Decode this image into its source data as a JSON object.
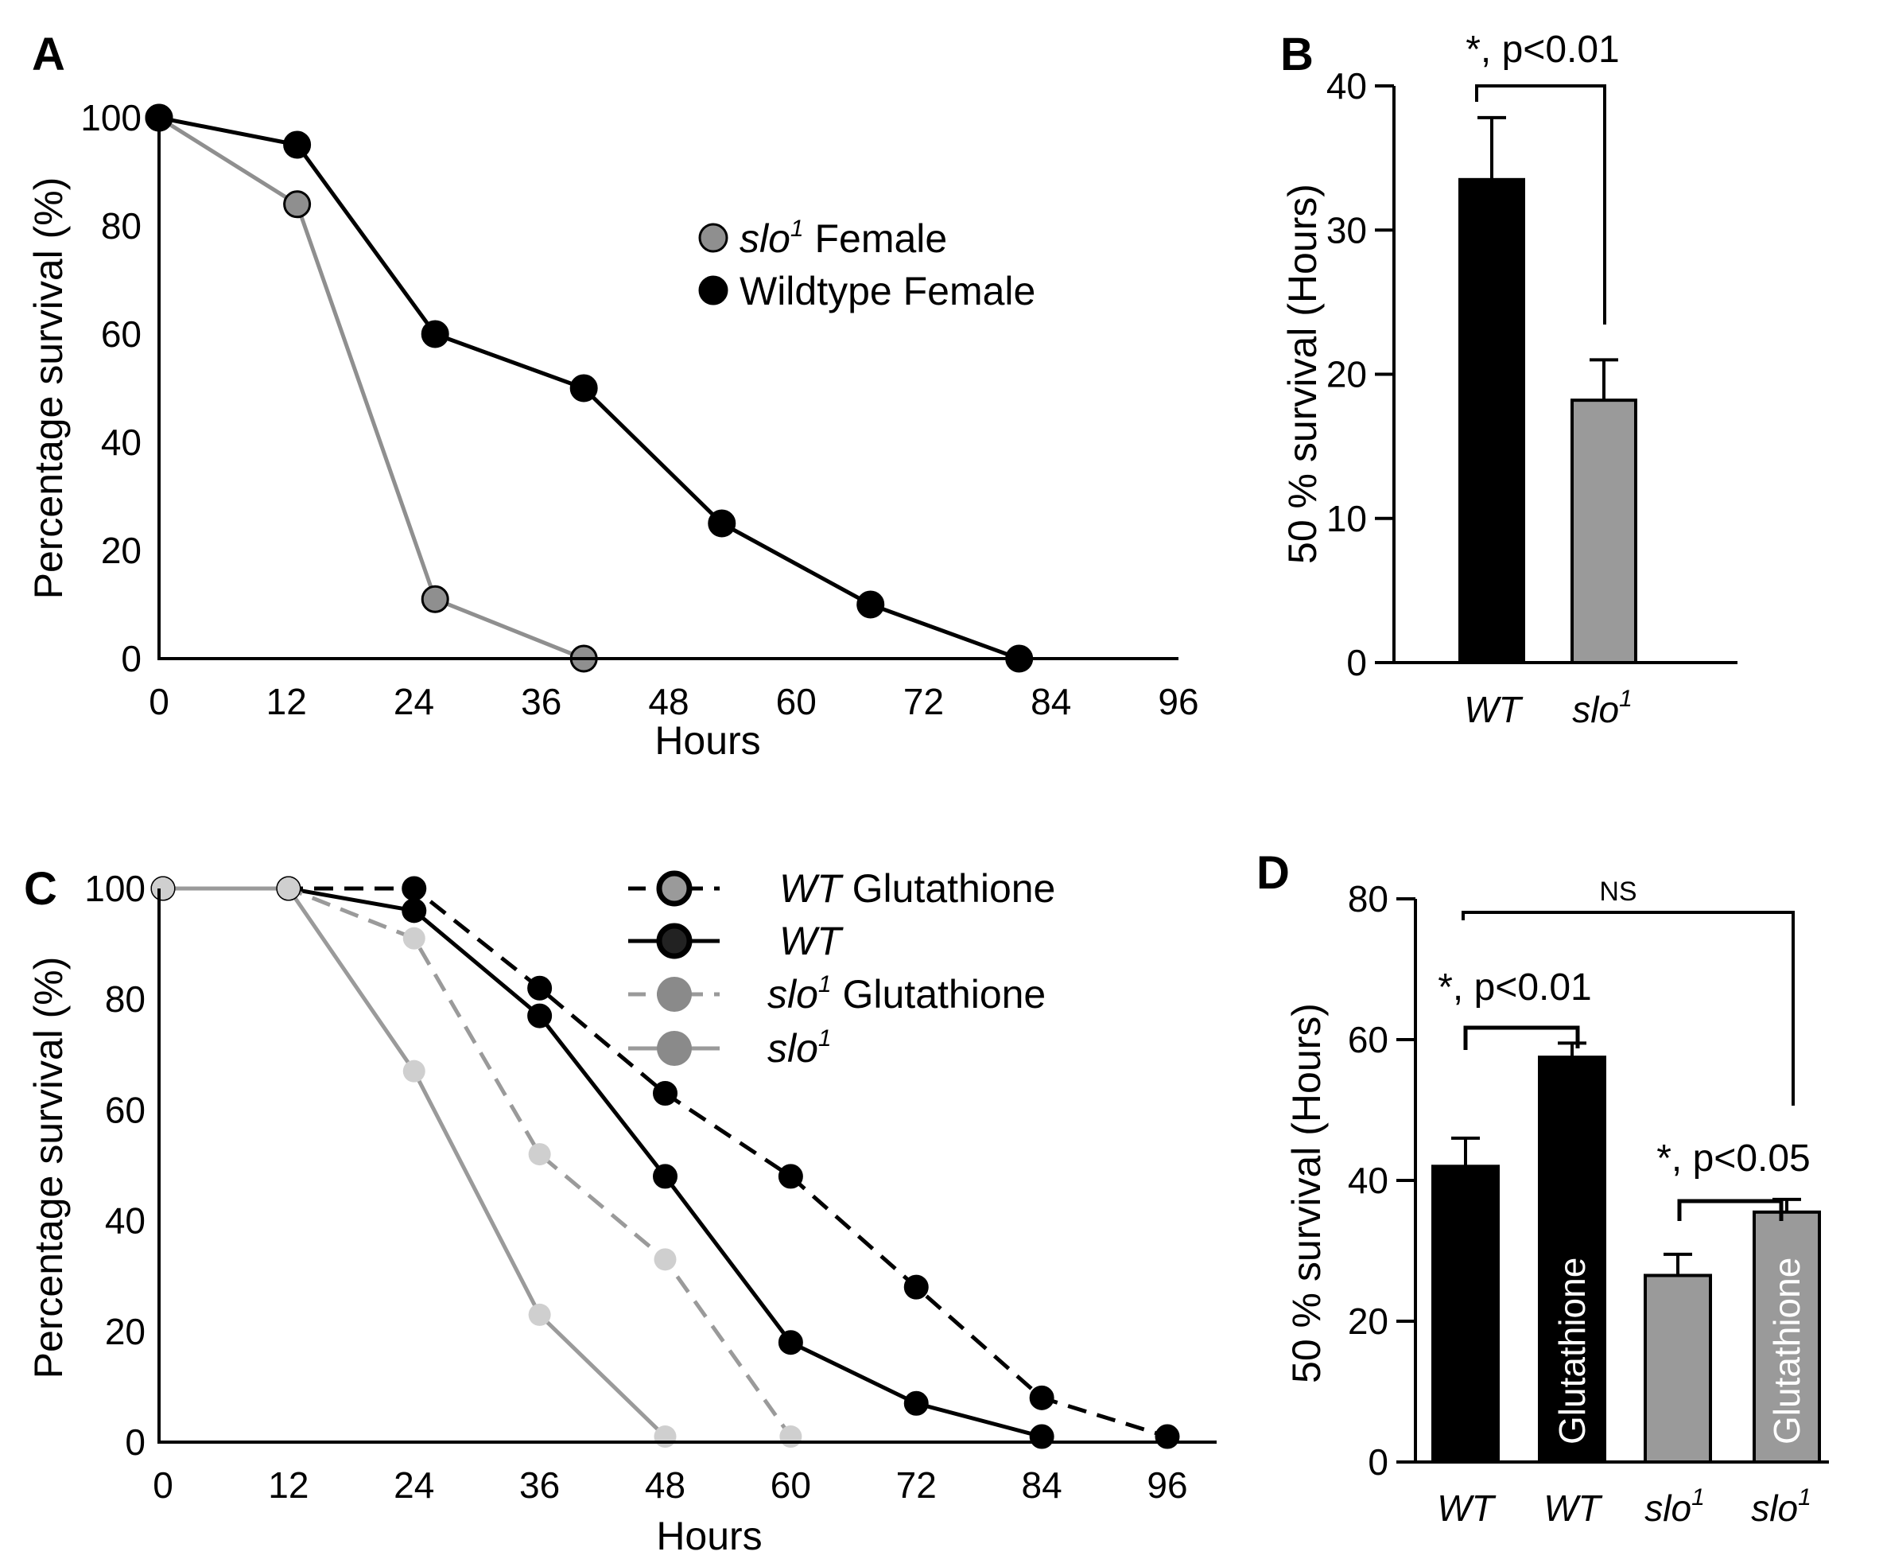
{
  "colors": {
    "black": "#000000",
    "gray": "#8f8f8f",
    "light_gray": "#cfcfcf",
    "bar_gray": "#9a9a9a"
  },
  "panels": {
    "A": {
      "letter": "A"
    },
    "B": {
      "letter": "B"
    },
    "C": {
      "letter": "C"
    },
    "D": {
      "letter": "D"
    }
  },
  "chart_data": [
    {
      "panel": "A",
      "type": "line",
      "xlabel": "Hours",
      "ylabel": "Percentage survival (%)",
      "xlim": [
        0,
        96
      ],
      "ylim": [
        0,
        100
      ],
      "xticks": [
        0,
        12,
        24,
        36,
        48,
        60,
        72,
        84,
        96
      ],
      "yticks": [
        0,
        20,
        40,
        60,
        80,
        100
      ],
      "legend_position": "top-right",
      "series": [
        {
          "name_italic": "slo",
          "name_sup": "1",
          "name_rest": " Female",
          "color": "#8f8f8f",
          "marker_fill": "#8f8f8f",
          "dashed": false,
          "x": [
            0,
            13,
            26,
            40
          ],
          "y": [
            100,
            84,
            11,
            0
          ]
        },
        {
          "name": "Wildtype Female",
          "color": "#000000",
          "marker_fill": "#000000",
          "dashed": false,
          "x": [
            0,
            13,
            26,
            40,
            53,
            67,
            81
          ],
          "y": [
            100,
            95,
            60,
            50,
            25,
            10,
            0
          ]
        }
      ]
    },
    {
      "panel": "B",
      "type": "bar",
      "ylabel": "50 % survival (Hours)",
      "ylim": [
        0,
        40
      ],
      "yticks": [
        0,
        10,
        20,
        30,
        40
      ],
      "categories": [
        {
          "italic": "WT",
          "sup": ""
        },
        {
          "italic": "slo",
          "sup": "1"
        }
      ],
      "values": [
        33.5,
        18.2
      ],
      "errors": [
        4.3,
        2.8
      ],
      "bar_colors": [
        "#000000",
        "#9a9a9a"
      ],
      "significance": [
        {
          "between": [
            0,
            1
          ],
          "label": "*, p<0.01"
        }
      ]
    },
    {
      "panel": "C",
      "type": "line",
      "xlabel": "Hours",
      "ylabel": "Percentage survival (%)",
      "xlim": [
        0,
        96
      ],
      "ylim": [
        0,
        100
      ],
      "xticks": [
        0,
        12,
        24,
        36,
        48,
        60,
        72,
        84,
        96
      ],
      "yticks": [
        0,
        20,
        40,
        60,
        80,
        100
      ],
      "legend_position": "top-right",
      "series": [
        {
          "name_italic": "WT",
          "name_sup": "",
          "name_rest": " Glutathione",
          "color": "#000000",
          "marker_fill": "#000000",
          "dashed": true,
          "x": [
            0,
            12,
            24,
            36,
            48,
            60,
            72,
            84,
            96
          ],
          "y": [
            100,
            100,
            100,
            82,
            63,
            48,
            28,
            8,
            1
          ]
        },
        {
          "name_italic": "WT",
          "name_sup": "",
          "name_rest": "",
          "color": "#000000",
          "marker_fill": "#000000",
          "dashed": false,
          "x": [
            0,
            12,
            24,
            36,
            48,
            60,
            72,
            84
          ],
          "y": [
            100,
            100,
            96,
            77,
            48,
            18,
            7,
            1
          ]
        },
        {
          "name_italic": "slo",
          "name_sup": "1",
          "name_rest": " Glutathione",
          "color": "#9a9a9a",
          "marker_fill": "#cfcfcf",
          "dashed": true,
          "x": [
            0,
            12,
            24,
            36,
            48,
            60
          ],
          "y": [
            100,
            100,
            91,
            52,
            33,
            1
          ]
        },
        {
          "name_italic": "slo",
          "name_sup": "1",
          "name_rest": "",
          "color": "#9a9a9a",
          "marker_fill": "#cfcfcf",
          "dashed": false,
          "x": [
            0,
            12,
            24,
            36,
            48
          ],
          "y": [
            100,
            100,
            67,
            23,
            1
          ]
        }
      ]
    },
    {
      "panel": "D",
      "type": "bar",
      "ylabel": "50 % survival (Hours)",
      "ylim": [
        0,
        80
      ],
      "yticks": [
        0,
        20,
        40,
        60,
        80
      ],
      "categories": [
        {
          "italic": "WT",
          "sup": ""
        },
        {
          "italic": "WT",
          "sup": ""
        },
        {
          "italic": "slo",
          "sup": "1"
        },
        {
          "italic": "slo",
          "sup": "1"
        }
      ],
      "values": [
        42,
        57.5,
        26.5,
        35.5
      ],
      "errors": [
        4,
        2,
        3,
        1.8
      ],
      "bar_colors": [
        "#000000",
        "#000000",
        "#9a9a9a",
        "#9a9a9a"
      ],
      "bar_inner_labels": [
        "",
        "Glutathione",
        "",
        "Glutathione"
      ],
      "significance": [
        {
          "between": [
            0,
            1
          ],
          "label": "*, p<0.01"
        },
        {
          "between": [
            2,
            3
          ],
          "label": "*, p<0.05"
        },
        {
          "between": [
            0,
            3
          ],
          "label": "NS"
        }
      ]
    }
  ]
}
